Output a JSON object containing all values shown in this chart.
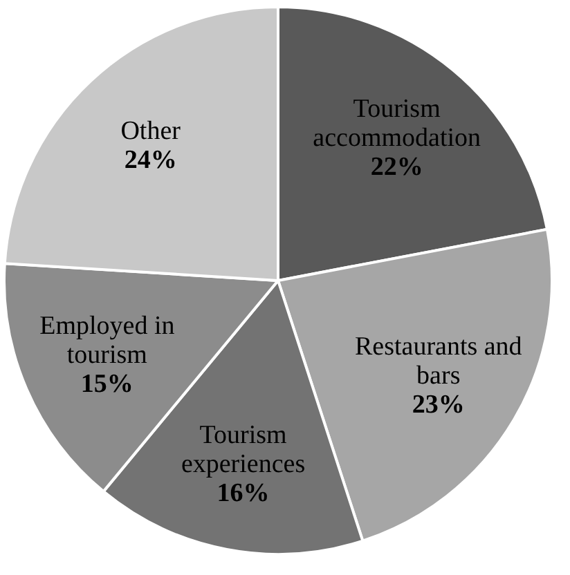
{
  "chart_data": {
    "type": "pie",
    "categories": [
      "Tourism accommodation",
      "Restaurants and bars",
      "Tourism experiences",
      "Employed in tourism",
      "Other"
    ],
    "values": [
      22,
      23,
      16,
      15,
      24
    ],
    "value_labels": [
      "22%",
      "23%",
      "16%",
      "15%",
      "24%"
    ],
    "colors": [
      "#595959",
      "#a6a6a6",
      "#737373",
      "#8c8c8c",
      "#c8c8c8"
    ],
    "legend": false
  }
}
